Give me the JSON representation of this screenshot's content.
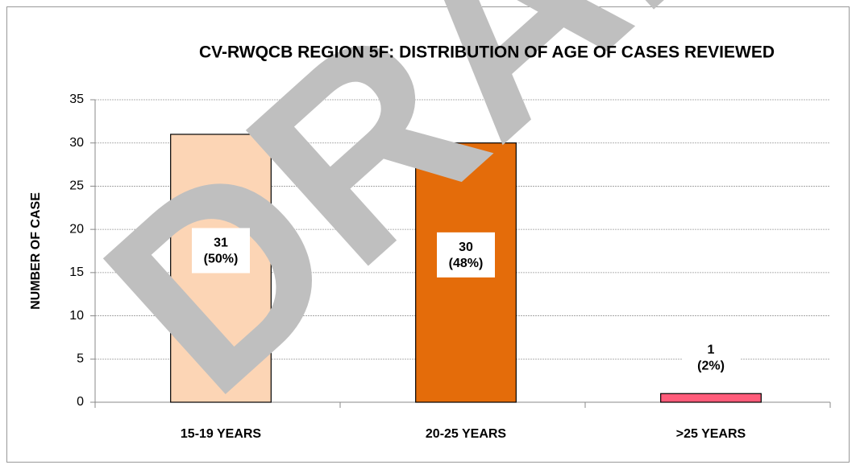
{
  "chart_data": {
    "type": "bar",
    "title": "CV-RWQCB REGION 5F: DISTRIBUTION OF AGE OF CASES REVIEWED",
    "y_label": "NUMBER OF CASE",
    "categories": [
      "15-19 YEARS",
      "20-25 YEARS",
      ">25 YEARS"
    ],
    "values": [
      31,
      30,
      1
    ],
    "value_labels": [
      [
        "31",
        "(50%)"
      ],
      [
        "30",
        "(48%)"
      ],
      [
        "1",
        "(2%)"
      ]
    ],
    "colors": [
      "#fcd5b5",
      "#e46c0a",
      "#ff5c7a"
    ],
    "ylim": [
      0,
      35
    ],
    "yticks": [
      0,
      5,
      10,
      15,
      20,
      25,
      30,
      35
    ],
    "grid": true,
    "watermark": "DRAFT"
  }
}
